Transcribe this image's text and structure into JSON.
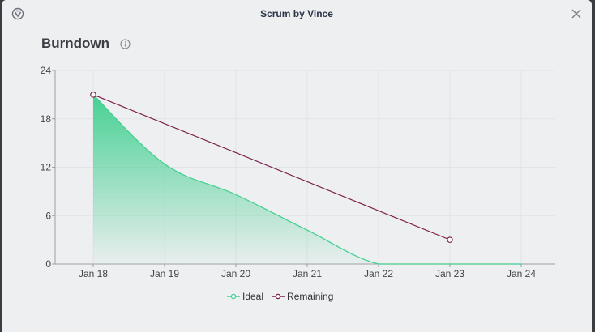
{
  "app": {
    "title": "Scrum by Vince"
  },
  "section": {
    "title": "Burndown"
  },
  "colors": {
    "ideal": "#3ecf8e",
    "remaining": "#7a1f4a",
    "grid": "#e2e3e6",
    "axis": "#9aa0a6"
  },
  "icons": {
    "app": "scrum-logo-icon",
    "info": "info-icon",
    "close": "close-icon"
  },
  "chart_data": {
    "type": "area",
    "categories": [
      "Jan 18",
      "Jan 19",
      "Jan 20",
      "Jan 21",
      "Jan 22",
      "Jan 23",
      "Jan 24"
    ],
    "yticks": [
      "0",
      "6",
      "12",
      "18",
      "24"
    ],
    "ylim": [
      0,
      24
    ],
    "xlabel": "",
    "ylabel": "",
    "title": "",
    "grid": true,
    "legend_position": "bottom",
    "series": [
      {
        "name": "Ideal",
        "type": "area",
        "values": [
          21,
          12.4,
          8.6,
          4.2,
          0,
          0,
          0
        ]
      },
      {
        "name": "Remaining",
        "type": "line",
        "points": [
          [
            0,
            21
          ],
          [
            5,
            3
          ]
        ]
      }
    ]
  }
}
